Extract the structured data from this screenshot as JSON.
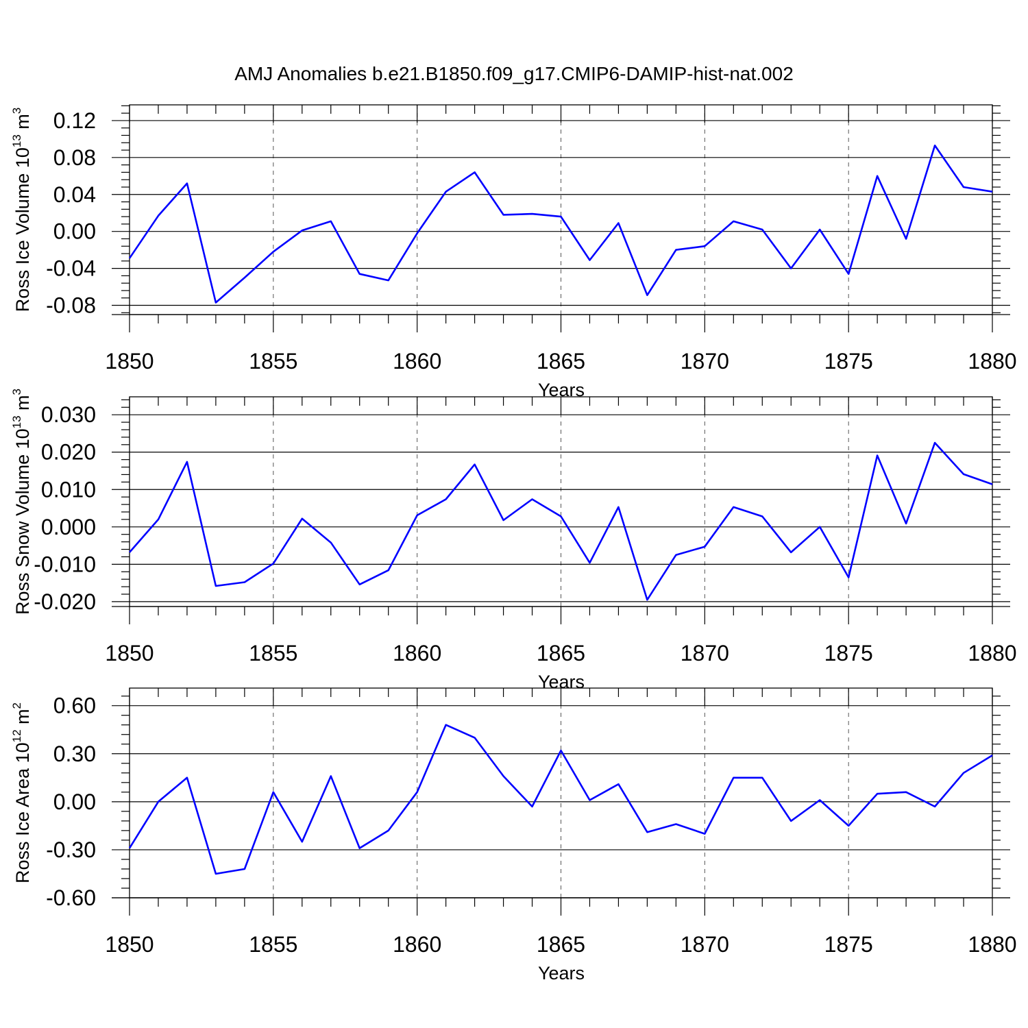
{
  "title": "AMJ Anomalies b.e21.B1850.f09_g17.CMIP6-DAMIP-hist-nat.002",
  "line_color": "#0000ff",
  "chart_data": [
    {
      "type": "line",
      "ylabel": "Ross Ice Volume 10",
      "ylabel_exp": "13",
      "ylabel_unit": " m",
      "ylabel_unit_exp": "3",
      "xlabel": "Years",
      "xlim": [
        1850,
        1880
      ],
      "ylim": [
        -0.09,
        0.137
      ],
      "xticks": [
        "1850",
        "1855",
        "1860",
        "1865",
        "1870",
        "1875",
        "1880"
      ],
      "yticks": [
        "0.12",
        "0.08",
        "0.04",
        "0.00",
        "-0.04",
        "-0.08"
      ],
      "x": [
        1850,
        1851,
        1852,
        1853,
        1854,
        1855,
        1856,
        1857,
        1858,
        1859,
        1860,
        1861,
        1862,
        1863,
        1864,
        1865,
        1866,
        1867,
        1868,
        1869,
        1870,
        1871,
        1872,
        1873,
        1874,
        1875,
        1876,
        1877,
        1878,
        1879,
        1880
      ],
      "values": [
        -0.029,
        0.017,
        0.052,
        -0.077,
        -0.05,
        -0.022,
        0.001,
        0.011,
        -0.046,
        -0.053,
        -0.002,
        0.043,
        0.064,
        0.018,
        0.019,
        0.016,
        -0.031,
        0.009,
        -0.069,
        -0.02,
        -0.016,
        0.011,
        0.002,
        -0.04,
        0.002,
        -0.046,
        0.06,
        -0.008,
        0.093,
        0.048,
        0.043
      ]
    },
    {
      "type": "line",
      "ylabel": "Ross Snow Volume 10",
      "ylabel_exp": "13",
      "ylabel_unit": " m",
      "ylabel_unit_exp": "3",
      "xlabel": "Years",
      "xlim": [
        1850,
        1880
      ],
      "ylim": [
        -0.0213,
        0.0348
      ],
      "xticks": [
        "1850",
        "1855",
        "1860",
        "1865",
        "1870",
        "1875",
        "1880"
      ],
      "yticks": [
        "0.030",
        "0.020",
        "0.010",
        "0.000",
        "-0.010",
        "-0.020"
      ],
      "x": [
        1850,
        1851,
        1852,
        1853,
        1854,
        1855,
        1856,
        1857,
        1858,
        1859,
        1860,
        1861,
        1862,
        1863,
        1864,
        1865,
        1866,
        1867,
        1868,
        1869,
        1870,
        1871,
        1872,
        1873,
        1874,
        1875,
        1876,
        1877,
        1878,
        1879,
        1880
      ],
      "values": [
        -0.0068,
        0.002,
        0.0174,
        -0.0158,
        -0.0148,
        -0.0098,
        0.0022,
        -0.0042,
        -0.0154,
        -0.0116,
        0.0031,
        0.0074,
        0.0167,
        0.0018,
        0.0074,
        0.0028,
        -0.0096,
        0.0053,
        -0.0195,
        -0.0075,
        -0.0053,
        0.0053,
        0.0028,
        -0.0068,
        0.0,
        -0.0135,
        0.0191,
        0.0009,
        0.0225,
        0.0141,
        0.0114
      ]
    },
    {
      "type": "line",
      "ylabel": "Ross Ice Area 10",
      "ylabel_exp": "12",
      "ylabel_unit": " m",
      "ylabel_unit_exp": "2",
      "xlabel": "Years",
      "xlim": [
        1850,
        1880
      ],
      "ylim": [
        -0.6,
        0.71
      ],
      "xticks": [
        "1850",
        "1855",
        "1860",
        "1865",
        "1870",
        "1875",
        "1880"
      ],
      "yticks": [
        "0.60",
        "0.30",
        "0.00",
        "-0.30",
        "-0.60"
      ],
      "x": [
        1850,
        1851,
        1852,
        1853,
        1854,
        1855,
        1856,
        1857,
        1858,
        1859,
        1860,
        1861,
        1862,
        1863,
        1864,
        1865,
        1866,
        1867,
        1868,
        1869,
        1870,
        1871,
        1872,
        1873,
        1874,
        1875,
        1876,
        1877,
        1878,
        1879,
        1880
      ],
      "values": [
        -0.29,
        0.0,
        0.15,
        -0.45,
        -0.42,
        0.06,
        -0.25,
        0.16,
        -0.29,
        -0.18,
        0.06,
        0.48,
        0.4,
        0.16,
        -0.03,
        0.32,
        0.01,
        0.11,
        -0.19,
        -0.14,
        -0.2,
        0.15,
        0.15,
        -0.12,
        0.01,
        -0.15,
        0.05,
        0.06,
        -0.03,
        0.18,
        0.29
      ]
    }
  ]
}
